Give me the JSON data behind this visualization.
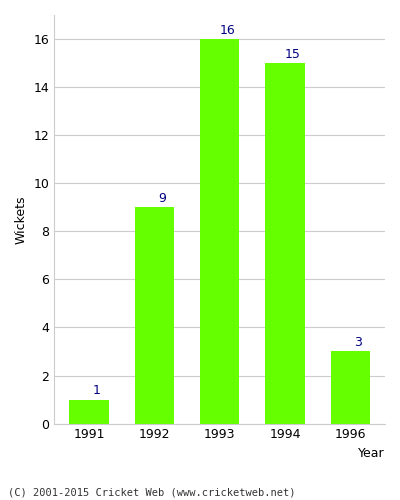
{
  "categories": [
    "1991",
    "1992",
    "1993",
    "1994",
    "1996"
  ],
  "values": [
    1,
    9,
    16,
    15,
    3
  ],
  "bar_color": "#66ff00",
  "label_color": "#000080",
  "xlabel": "Year",
  "ylabel": "Wickets",
  "ylim": [
    0,
    17
  ],
  "yticks": [
    0,
    2,
    4,
    6,
    8,
    10,
    12,
    14,
    16
  ],
  "footnote": "(C) 2001-2015 Cricket Web (www.cricketweb.net)",
  "background_color": "#ffffff",
  "grid_color": "#cccccc",
  "bar_width": 0.6
}
